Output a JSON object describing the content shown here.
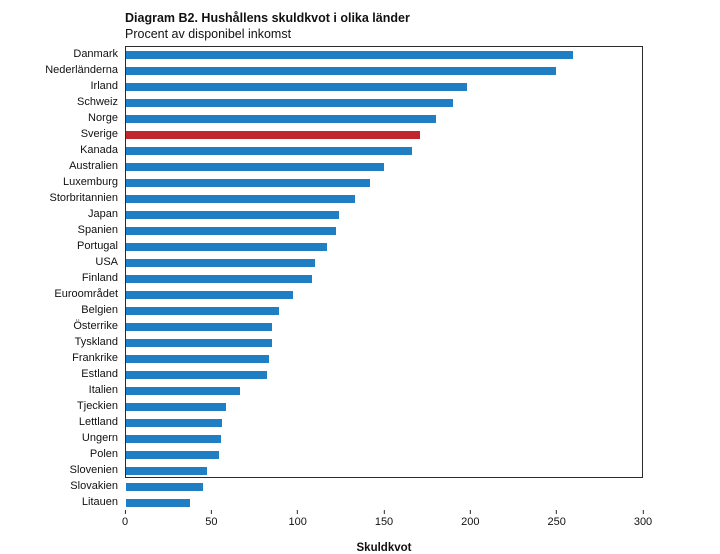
{
  "chart_data": {
    "type": "bar",
    "orientation": "horizontal",
    "title": "Diagram B2. Hushållens skuldkvot i olika länder",
    "subtitle": "Procent av disponibel inkomst",
    "xlabel": "Skuldkvot",
    "ylabel": "",
    "xlim": [
      0,
      300
    ],
    "xticks": [
      0,
      50,
      100,
      150,
      200,
      250,
      300
    ],
    "grid": false,
    "legend": false,
    "bar_color": "#1f7fc2",
    "highlight_color": "#c0272d",
    "highlight_category": "Sverige",
    "categories": [
      "Danmark",
      "Nederländerna",
      "Irland",
      "Schweiz",
      "Norge",
      "Sverige",
      "Kanada",
      "Australien",
      "Luxemburg",
      "Storbritannien",
      "Japan",
      "Spanien",
      "Portugal",
      "USA",
      "Finland",
      "Euroområdet",
      "Belgien",
      "Österrike",
      "Tyskland",
      "Frankrike",
      "Estland",
      "Italien",
      "Tjeckien",
      "Lettland",
      "Ungern",
      "Polen",
      "Slovenien",
      "Slovakien",
      "Litauen"
    ],
    "values": [
      260,
      250,
      198,
      190,
      180,
      171,
      166,
      150,
      142,
      133,
      124,
      122,
      117,
      110,
      108,
      97,
      89,
      85,
      85,
      83,
      82,
      66,
      58,
      56,
      55,
      54,
      47,
      45,
      37
    ]
  }
}
